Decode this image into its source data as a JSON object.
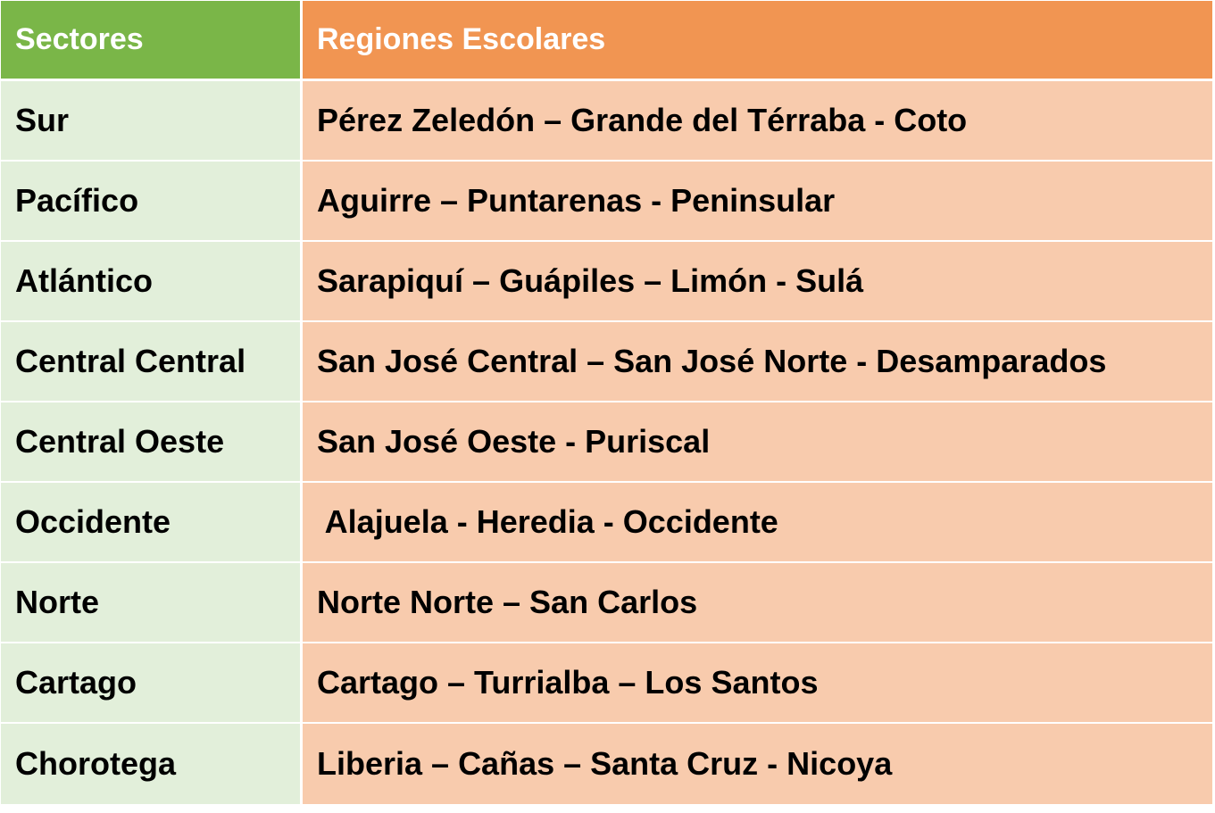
{
  "table": {
    "headers": [
      "Sectores",
      "Regiones Escolares"
    ],
    "rows": [
      {
        "sector": "Sur",
        "regiones": "Pérez Zeledón – Grande del Térraba - Coto"
      },
      {
        "sector": "Pacífico",
        "regiones": "Aguirre – Puntarenas - Peninsular"
      },
      {
        "sector": "Atlántico",
        "regiones": "Sarapiquí – Guápiles – Limón - Sulá"
      },
      {
        "sector": "Central Central",
        "regiones": "San José Central – San José Norte - Desamparados"
      },
      {
        "sector": "Central Oeste",
        "regiones": "San José Oeste - Puriscal"
      },
      {
        "sector": "Occidente",
        "regiones": " Alajuela - Heredia - Occidente"
      },
      {
        "sector": "Norte",
        "regiones": "Norte Norte – San Carlos"
      },
      {
        "sector": "Cartago",
        "regiones": "Cartago – Turrialba – Los Santos"
      },
      {
        "sector": "Chorotega",
        "regiones": "Liberia – Cañas – Santa Cruz - Nicoya"
      }
    ]
  },
  "colors": {
    "header_sector": "#7ab648",
    "header_regiones": "#f19552",
    "body_sector": "#e2efda",
    "body_regiones": "#f8cbad"
  }
}
